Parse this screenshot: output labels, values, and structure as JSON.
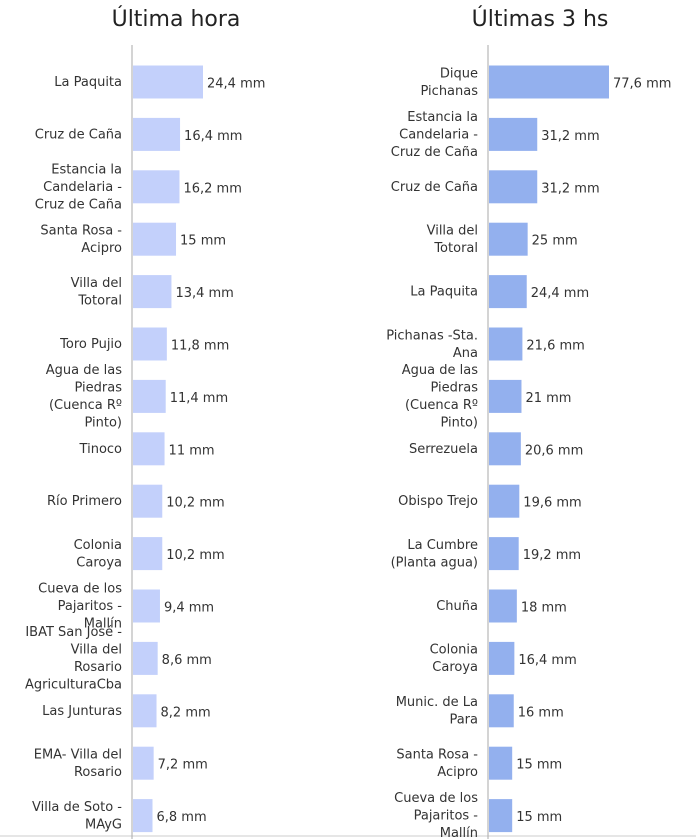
{
  "chart_data": [
    {
      "type": "bar",
      "orientation": "horizontal",
      "title": "Última hora",
      "color": "#c3d0fb",
      "categories": [
        "La Paquita",
        "Cruz de Caña",
        "Estancia la\nCandelaria -\nCruz de Caña",
        "Santa Rosa -\nAcipro",
        "Villa del\nTotoral",
        "Toro Pujio",
        "Agua de las\nPiedras\n(Cuenca Rº\nPinto)",
        "Tinoco",
        "Río Primero",
        "Colonia\nCaroya",
        "Cueva de los\nPajaritos -\nMallín",
        "IBAT San José -\nVilla del\nRosario\nAgriculturaCba",
        "Las Junturas",
        "EMA- Villa del\nRosario",
        "Villa de Soto -\nMAyG"
      ],
      "values": [
        24.4,
        16.4,
        16.2,
        15,
        13.4,
        11.8,
        11.4,
        11,
        10.2,
        10.2,
        9.4,
        8.6,
        8.2,
        7.2,
        6.8
      ],
      "value_labels": [
        "24,4 mm",
        "16,4 mm",
        "16,2 mm",
        "15 mm",
        "13,4 mm",
        "11,8 mm",
        "11,4 mm",
        "11 mm",
        "10,2 mm",
        "10,2 mm",
        "9,4 mm",
        "8,6 mm",
        "8,2 mm",
        "7,2 mm",
        "6,8 mm"
      ]
    },
    {
      "type": "bar",
      "orientation": "horizontal",
      "title": "Últimas 3 hs",
      "color": "#93b0ee",
      "categories": [
        "Dique\nPichanas",
        "Estancia la\nCandelaria -\nCruz de Caña",
        "Cruz de Caña",
        "Villa del\nTotoral",
        "La Paquita",
        "Pichanas -Sta.\nAna",
        "Agua de las\nPiedras\n(Cuenca Rº\nPinto)",
        "Serrezuela",
        "Obispo Trejo",
        "La Cumbre\n(Planta agua)",
        "Chuña",
        "Colonia\nCaroya",
        "Munic. de La\nPara",
        "Santa Rosa -\nAcipro",
        "Cueva de los\nPajaritos -\nMallín"
      ],
      "values": [
        77.6,
        31.2,
        31.2,
        25,
        24.4,
        21.6,
        21,
        20.6,
        19.6,
        19.2,
        18,
        16.4,
        16,
        15,
        15
      ],
      "value_labels": [
        "77,6 mm",
        "31,2 mm",
        "31,2 mm",
        "25 mm",
        "24,4 mm",
        "21,6 mm",
        "21 mm",
        "20,6 mm",
        "19,6 mm",
        "19,2 mm",
        "18 mm",
        "16,4 mm",
        "16 mm",
        "15 mm",
        "15 mm"
      ]
    }
  ]
}
